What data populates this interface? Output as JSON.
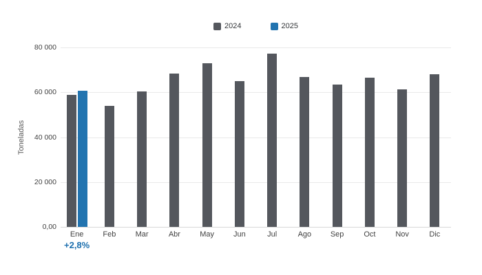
{
  "chart_data": {
    "type": "bar",
    "title": "",
    "xlabel": "",
    "ylabel": "Toneladas",
    "ylim": [
      0,
      80000
    ],
    "grid": true,
    "legend_position": "top",
    "ytick_labels": [
      "80 000",
      "60 000",
      "40 000",
      "20 000",
      "0,00"
    ],
    "ytick_values": [
      80000,
      60000,
      40000,
      20000,
      0
    ],
    "categories": [
      "Ene",
      "Feb",
      "Mar",
      "Abr",
      "May",
      "Jun",
      "Jul",
      "Ago",
      "Sep",
      "Oct",
      "Nov",
      "Dic"
    ],
    "series": [
      {
        "name": "2024",
        "color": "#54575d",
        "values": [
          58900,
          54000,
          60500,
          68300,
          73000,
          64900,
          77100,
          66900,
          63400,
          66600,
          61300,
          68000
        ]
      },
      {
        "name": "2025",
        "color": "#2274b0",
        "values": [
          60550,
          null,
          null,
          null,
          null,
          null,
          null,
          null,
          null,
          null,
          null,
          null
        ]
      }
    ],
    "annotation": {
      "text": "+2,8%",
      "category": "Ene",
      "color": "#1c6fae"
    }
  },
  "colors": {
    "background": "#ffffff",
    "gridline": "#e9e9e9",
    "baseline": "#d8d8d8",
    "tick_text": "#404040",
    "legend_text": "#333639",
    "axis_title_text": "#5a5a5a",
    "bar_2024": "#54575d",
    "bar_2025": "#2274b0",
    "annotation_text": "#1c6fae"
  }
}
